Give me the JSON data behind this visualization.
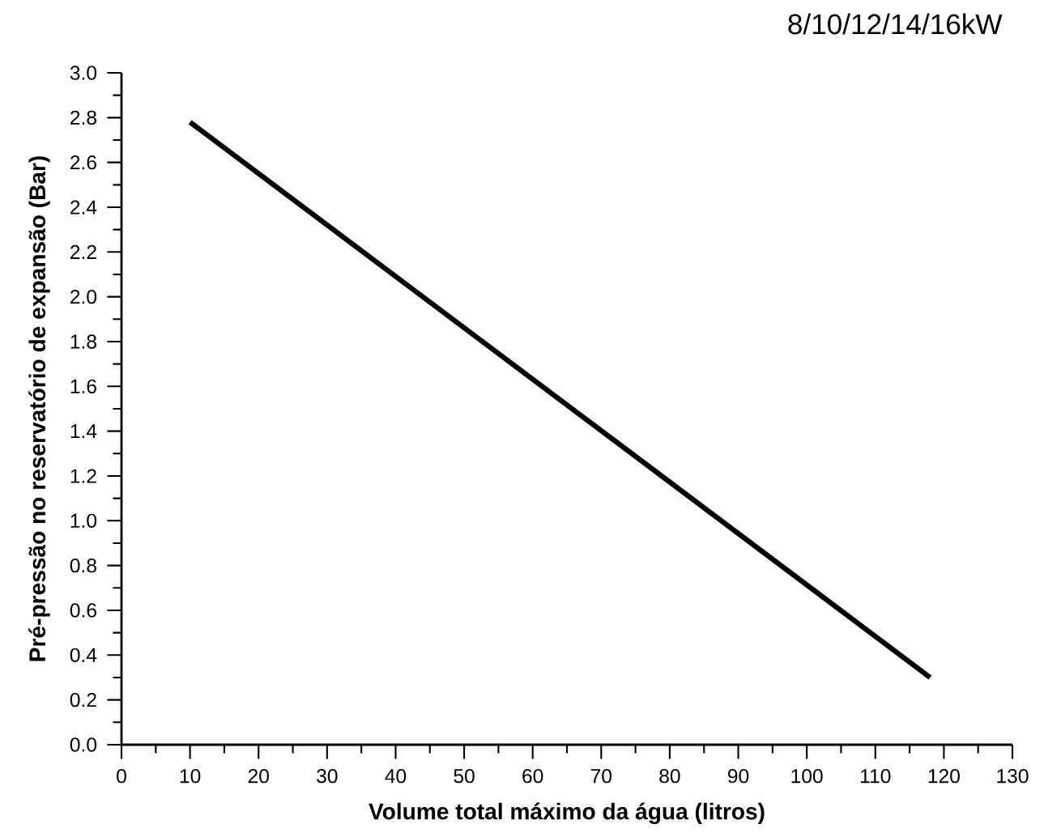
{
  "chart_data": {
    "type": "line",
    "title": "8/10/12/14/16kW",
    "xlabel": "Volume total máximo da água (litros)",
    "ylabel": "Pré-pressão no reservatório de expansão (Bar)",
    "x": [
      10,
      118
    ],
    "values": [
      2.78,
      0.3
    ],
    "color": "#000000",
    "xlim": [
      0,
      130
    ],
    "xticks": [
      0,
      10,
      20,
      30,
      40,
      50,
      60,
      70,
      80,
      90,
      100,
      110,
      120,
      130
    ],
    "ylim": [
      0,
      3.0
    ],
    "yticks": [
      {
        "value": 0,
        "label": "0.0"
      },
      0.2,
      0.4,
      0.6,
      0.8,
      {
        "value": 1,
        "label": "1.0"
      },
      1.2,
      1.4,
      1.6,
      1.8,
      {
        "value": 2,
        "label": "2.0"
      },
      2.2,
      2.4,
      2.6,
      2.8,
      {
        "value": 3,
        "label": "3.0"
      }
    ],
    "grid": false,
    "marker": "none",
    "line_style": "solid"
  }
}
